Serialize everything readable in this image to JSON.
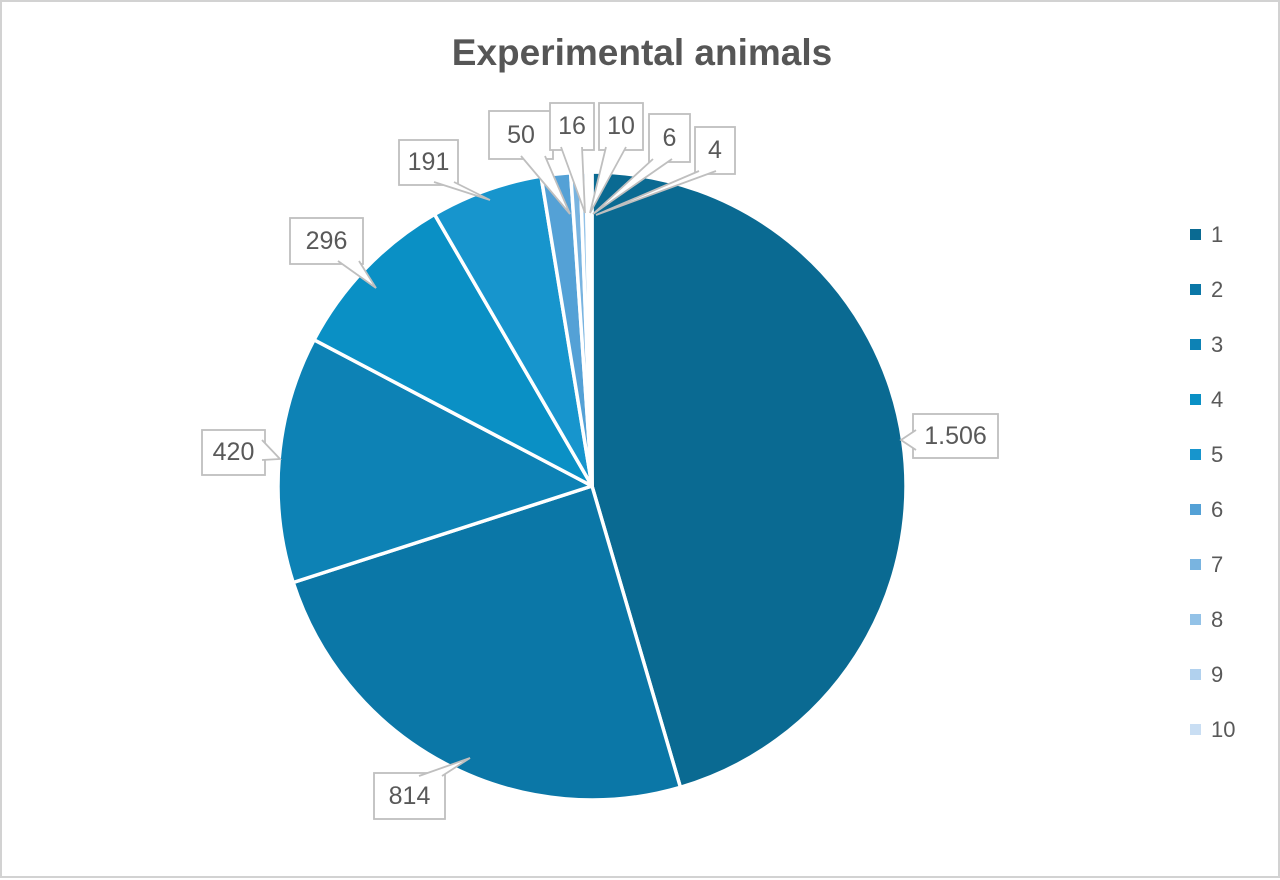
{
  "chart_data": {
    "type": "pie",
    "title": "Experimental animals",
    "categories": [
      "1",
      "2",
      "3",
      "4",
      "5",
      "6",
      "7",
      "8",
      "9",
      "10"
    ],
    "values": [
      1506,
      814,
      420,
      296,
      191,
      50,
      16,
      10,
      6,
      4
    ],
    "display_values": [
      "1.506",
      "814",
      "420",
      "296",
      "191",
      "50",
      "16",
      "10",
      "6",
      "4"
    ],
    "colors": [
      "#0a6a92",
      "#0b77a7",
      "#0d82b5",
      "#0a90c5",
      "#1795cd",
      "#54a1d6",
      "#79b4e0",
      "#93c2e7",
      "#b1d1ee",
      "#c9def3"
    ],
    "legend_position": "right",
    "start_angle_deg": 0,
    "direction": "clockwise",
    "label_style": "callout",
    "slice_border_color": "#ffffff",
    "callout_border_color": "#bfbfbf",
    "label_text_color": "#595959",
    "title_color": "#565656",
    "frame_border_color": "#d2d2d2",
    "background_color": "#ffffff"
  }
}
